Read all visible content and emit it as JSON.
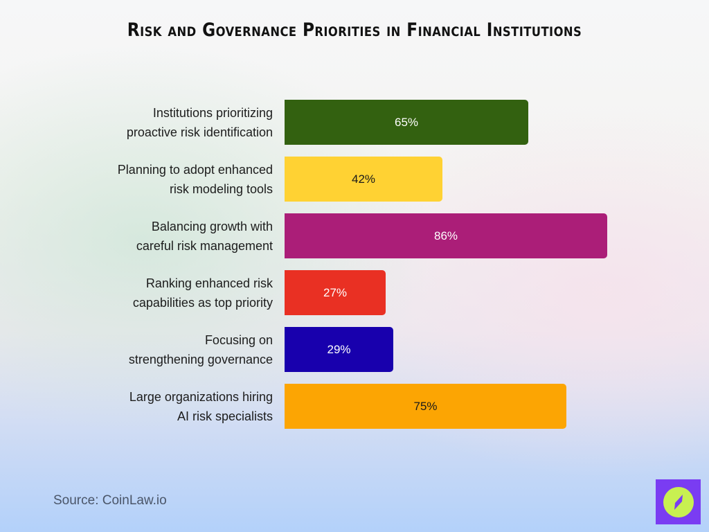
{
  "title": "Risk and Governance Priorities in Financial Institutions",
  "source": "Source: CoinLaw.io",
  "logo": {
    "icon": "compass-icon",
    "bg_color": "#7a3cf2",
    "circle_color": "#c8f051"
  },
  "chart_data": {
    "type": "bar",
    "orientation": "horizontal",
    "title": "Risk and Governance Priorities in Financial Institutions",
    "xlabel": "",
    "ylabel": "",
    "xlim": [
      0,
      100
    ],
    "grid": false,
    "legend": "none",
    "categories": [
      "Institutions prioritizing proactive risk identification",
      "Planning to adopt enhanced risk modeling tools",
      "Balancing growth with careful risk management",
      "Ranking enhanced risk capabilities as top priority",
      "Focusing on strengthening governance",
      "Large organizations hiring AI risk specialists"
    ],
    "values": [
      65,
      42,
      86,
      27,
      29,
      75
    ],
    "unit": "%"
  },
  "bars": [
    {
      "line1": "Institutions prioritizing",
      "line2": "proactive risk identification",
      "value": 65,
      "label": "65%",
      "color": "#336110",
      "text_color": "#ffffff"
    },
    {
      "line1": "Planning to adopt enhanced",
      "line2": "risk modeling tools",
      "value": 42,
      "label": "42%",
      "color": "#ffd233",
      "text_color": "#1a1a1a"
    },
    {
      "line1": "Balancing growth with",
      "line2": "careful risk management",
      "value": 86,
      "label": "86%",
      "color": "#ab1e78",
      "text_color": "#ffffff"
    },
    {
      "line1": "Ranking enhanced risk",
      "line2": "capabilities as top priority",
      "value": 27,
      "label": "27%",
      "color": "#e93023",
      "text_color": "#ffffff"
    },
    {
      "line1": "Focusing on",
      "line2": "strengthening governance",
      "value": 29,
      "label": "29%",
      "color": "#1800ad",
      "text_color": "#ffffff"
    },
    {
      "line1": "Large organizations hiring",
      "line2": "AI risk specialists",
      "value": 75,
      "label": "75%",
      "color": "#fca503",
      "text_color": "#1a1a1a"
    }
  ]
}
